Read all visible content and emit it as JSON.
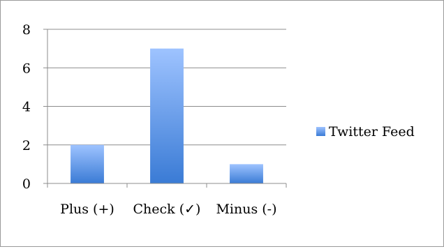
{
  "chart_data": {
    "type": "bar",
    "categories": [
      "Plus (+)",
      "Check (✓)",
      "Minus (-)"
    ],
    "series": [
      {
        "name": "Twitter Feed",
        "values": [
          2,
          7,
          1
        ],
        "color_top": "#9ec3ff",
        "color_bottom": "#3a7bd5"
      }
    ],
    "yticks": [
      0,
      2,
      4,
      6,
      8
    ],
    "ylim": [
      0,
      8
    ],
    "grid": true,
    "legend": "right",
    "xlabel": "",
    "ylabel": "",
    "title": ""
  }
}
